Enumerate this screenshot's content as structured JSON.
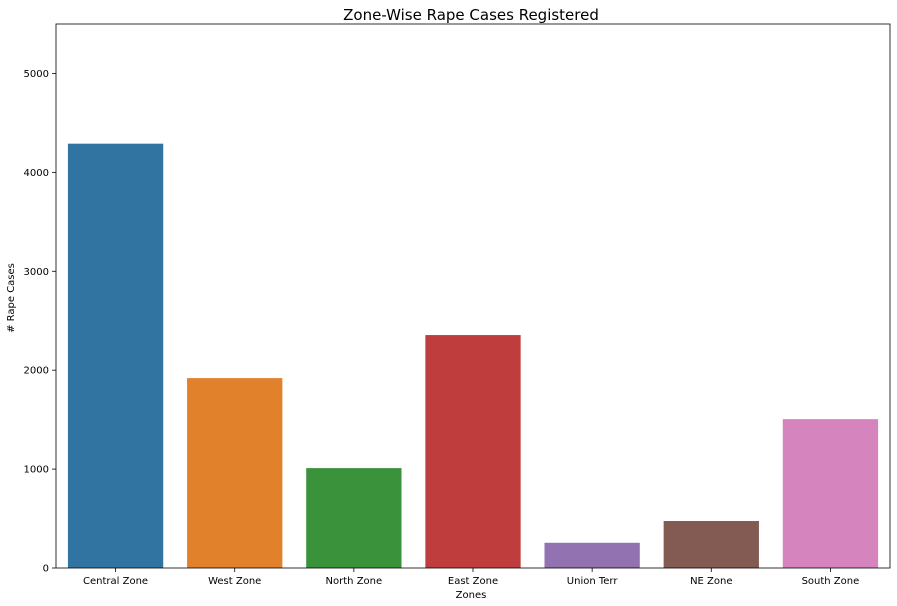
{
  "chart_data": {
    "type": "bar",
    "title": "Zone-Wise Rape Cases Registered",
    "xlabel": "Zones",
    "ylabel": "# Rape Cases",
    "categories": [
      "Central Zone",
      "West Zone",
      "North Zone",
      "East Zone",
      "Union Terr",
      "NE Zone",
      "South Zone"
    ],
    "values": [
      4290,
      1920,
      1010,
      2355,
      255,
      475,
      1505
    ],
    "colors": [
      "#3274a1",
      "#e1812c",
      "#3a923a",
      "#c03d3e",
      "#9372b2",
      "#845b53",
      "#d684bd"
    ],
    "ylim": [
      0,
      5500
    ],
    "yticks": [
      0,
      1000,
      2000,
      3000,
      4000,
      5000
    ],
    "grid": false,
    "legend": "none"
  }
}
